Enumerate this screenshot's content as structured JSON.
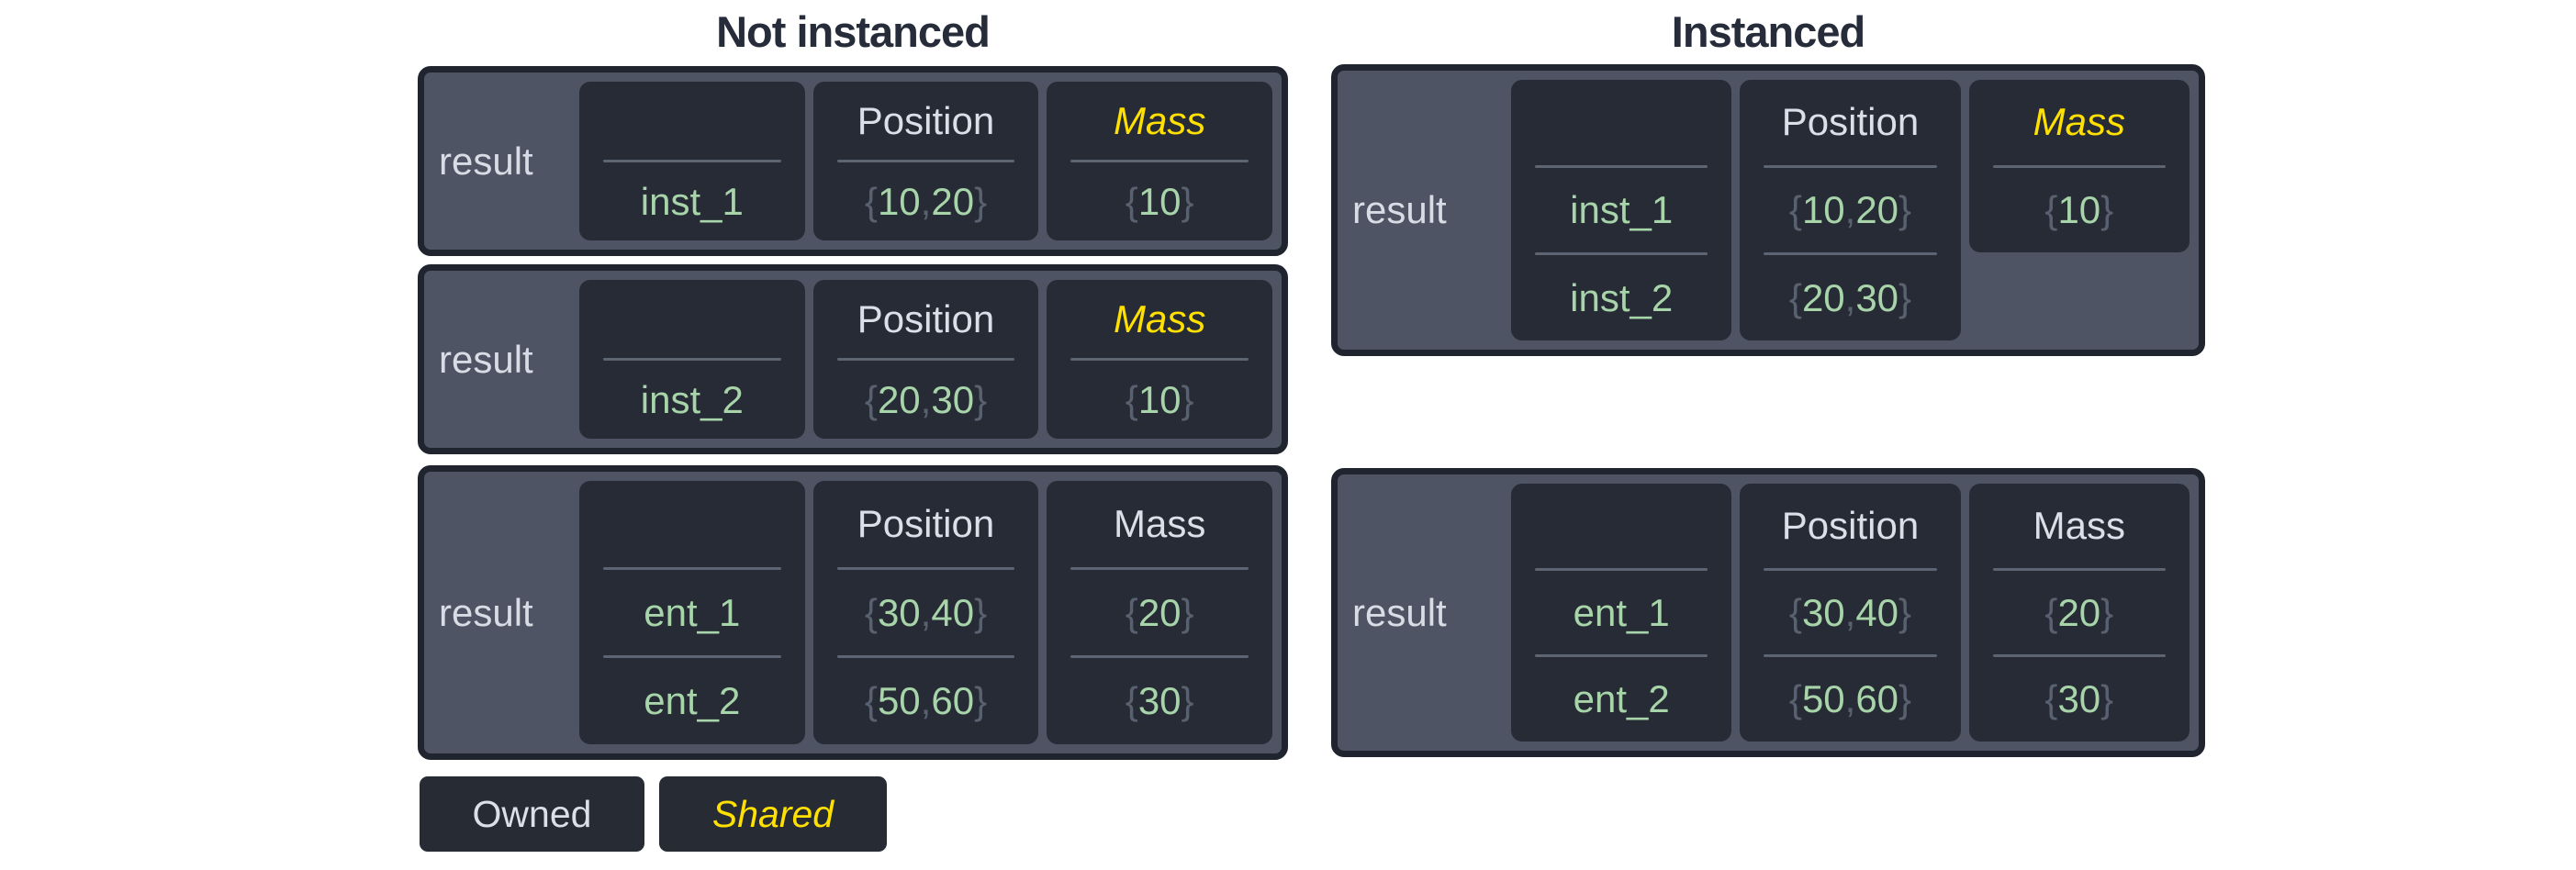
{
  "titles": {
    "not_instanced": "Not instanced",
    "instanced": "Instanced"
  },
  "legend": {
    "owned": "Owned",
    "shared": "Shared"
  },
  "tables": {
    "ni_1": {
      "result": "result",
      "entity": {
        "r1": "inst_1"
      },
      "position": {
        "header": "Position",
        "r1": "{10, 20}"
      },
      "mass": {
        "header": "Mass",
        "r1": "{10}",
        "shared": true
      }
    },
    "ni_2": {
      "result": "result",
      "entity": {
        "r1": "inst_2"
      },
      "position": {
        "header": "Position",
        "r1": "{20, 30}"
      },
      "mass": {
        "header": "Mass",
        "r1": "{10}",
        "shared": true
      }
    },
    "ni_3": {
      "result": "result",
      "entity": {
        "r1": "ent_1",
        "r2": "ent_2"
      },
      "position": {
        "header": "Position",
        "r1": "{30, 40}",
        "r2": "{50, 60}"
      },
      "mass": {
        "header": "Mass",
        "r1": "{20}",
        "r2": "{30}",
        "shared": false
      }
    },
    "i_1": {
      "result": "result",
      "entity": {
        "r1": "inst_1",
        "r2": "inst_2"
      },
      "position": {
        "header": "Position",
        "r1": "{10, 20}",
        "r2": "{20, 30}"
      },
      "mass": {
        "header": "Mass",
        "r1": "{10}",
        "shared": true
      }
    },
    "i_2": {
      "result": "result",
      "entity": {
        "r1": "ent_1",
        "r2": "ent_2"
      },
      "position": {
        "header": "Position",
        "r1": "{30, 40}",
        "r2": "{50, 60}"
      },
      "mass": {
        "header": "Mass",
        "r1": "{20}",
        "r2": "{30}",
        "shared": false
      }
    }
  },
  "colors": {
    "page_bg": "#ffffff",
    "title_text": "#262c3a",
    "table_bg": "#4e5464",
    "table_border": "#20242e",
    "cell_bg": "#262b35",
    "header_text": "#dcdfe8",
    "result_text": "#d8dce5",
    "value_green": "#a8d4aa",
    "punct_grey": "#596170",
    "divider_grey": "#5d6472",
    "shared_yellow": "#ffe000",
    "legend_bg": "#262b34"
  }
}
